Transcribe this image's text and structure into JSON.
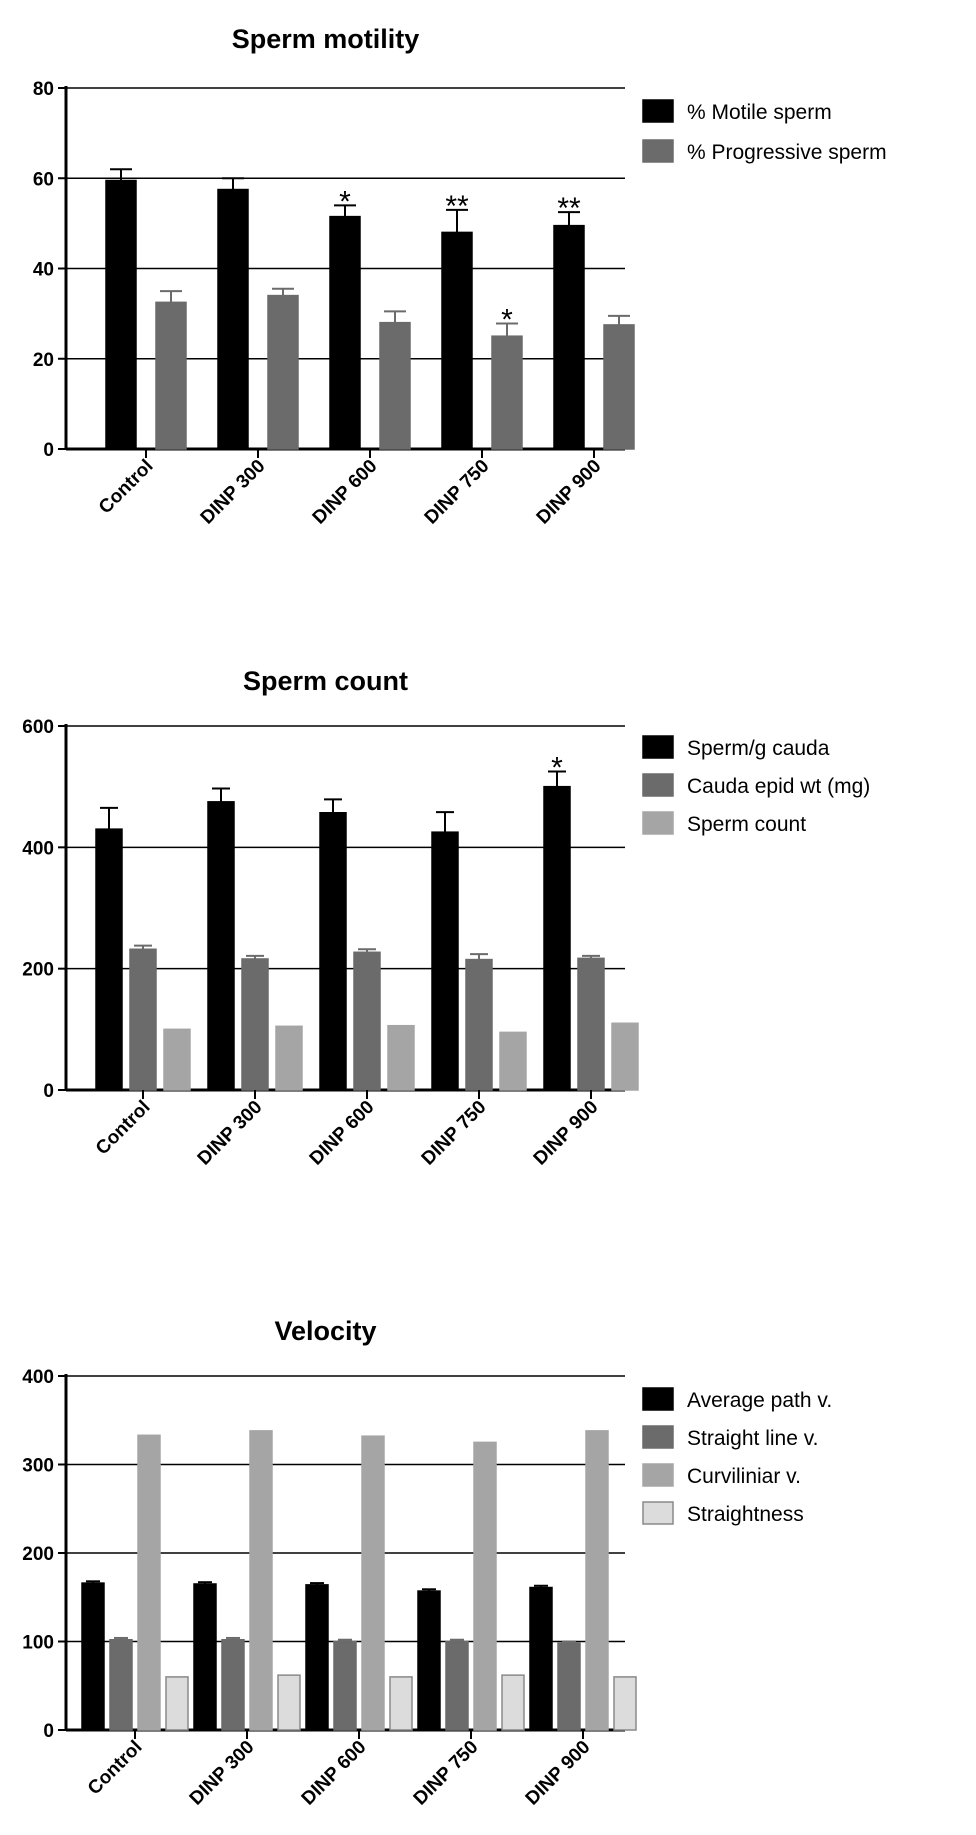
{
  "chart_data": [
    {
      "type": "bar",
      "title": "Sperm motility",
      "categories": [
        "Control",
        "DINP 300",
        "DINP 600",
        "DINP 750",
        "DINP 900"
      ],
      "ylim": [
        0,
        80
      ],
      "yticks": [
        "0",
        "20",
        "40",
        "60",
        "80"
      ],
      "grid": true,
      "legend": "right",
      "series": [
        {
          "name": "% Motile sperm",
          "color": "#000000",
          "values": [
            59.5,
            57.5,
            51.5,
            48,
            49.5
          ],
          "errors": [
            2.5,
            2.5,
            2.5,
            5,
            3
          ]
        },
        {
          "name": "% Progressive sperm",
          "color": "#6b6b6b",
          "values": [
            32.5,
            34,
            28,
            25,
            27.5
          ],
          "errors": [
            2.5,
            1.5,
            2.5,
            2.8,
            2
          ]
        }
      ],
      "annotations": [
        {
          "category": 2,
          "series": 0,
          "text": "*"
        },
        {
          "category": 3,
          "series": 0,
          "text": "**"
        },
        {
          "category": 3,
          "series": 1,
          "text": "*"
        },
        {
          "category": 4,
          "series": 0,
          "text": "**"
        }
      ]
    },
    {
      "type": "bar",
      "title": "Sperm count",
      "categories": [
        "Control",
        "DINP 300",
        "DINP 600",
        "DINP 750",
        "DINP 900"
      ],
      "ylim": [
        0,
        600
      ],
      "yticks": [
        "0",
        "200",
        "400",
        "600"
      ],
      "grid": true,
      "legend": "right",
      "series": [
        {
          "name": "Sperm/g cauda",
          "color": "#000000",
          "values": [
            430,
            475,
            457,
            425,
            500
          ],
          "errors": [
            35,
            22,
            22,
            33,
            25
          ]
        },
        {
          "name": "Cauda epid wt (mg)",
          "color": "#6b6b6b",
          "values": [
            232,
            216,
            227,
            215,
            217
          ],
          "errors": [
            6,
            5,
            5,
            9,
            4
          ]
        },
        {
          "name": "Sperm count",
          "color": "#a5a5a5",
          "values": [
            100,
            105,
            106,
            95,
            110
          ],
          "errors": [
            0,
            0,
            0,
            0,
            0
          ]
        }
      ],
      "annotations": [
        {
          "category": 4,
          "series": 0,
          "text": "*"
        }
      ]
    },
    {
      "type": "bar",
      "title": "Velocity",
      "categories": [
        "Control",
        "DINP 300",
        "DINP 600",
        "DINP 750",
        "DINP 900"
      ],
      "ylim": [
        0,
        400
      ],
      "yticks": [
        "0",
        "100",
        "200",
        "300",
        "400"
      ],
      "grid": true,
      "legend": "right",
      "series": [
        {
          "name": "Average path v.",
          "color": "#000000",
          "values": [
            166,
            165,
            164,
            157,
            161
          ],
          "errors": [
            2,
            2,
            2,
            2,
            2
          ]
        },
        {
          "name": "Straight line v.",
          "color": "#6b6b6b",
          "values": [
            102,
            102,
            100,
            100,
            98
          ],
          "errors": [
            2,
            2,
            2,
            2,
            2
          ]
        },
        {
          "name": "Curviliniar v.",
          "color": "#a5a5a5",
          "values": [
            333,
            338,
            332,
            325,
            338
          ],
          "errors": [
            0,
            0,
            0,
            0,
            0
          ]
        },
        {
          "name": "Straightness",
          "color": "#dcdcdc",
          "values": [
            60,
            62,
            60,
            62,
            60
          ],
          "errors": [
            0,
            0,
            0,
            0,
            0
          ]
        }
      ],
      "annotations": []
    }
  ]
}
